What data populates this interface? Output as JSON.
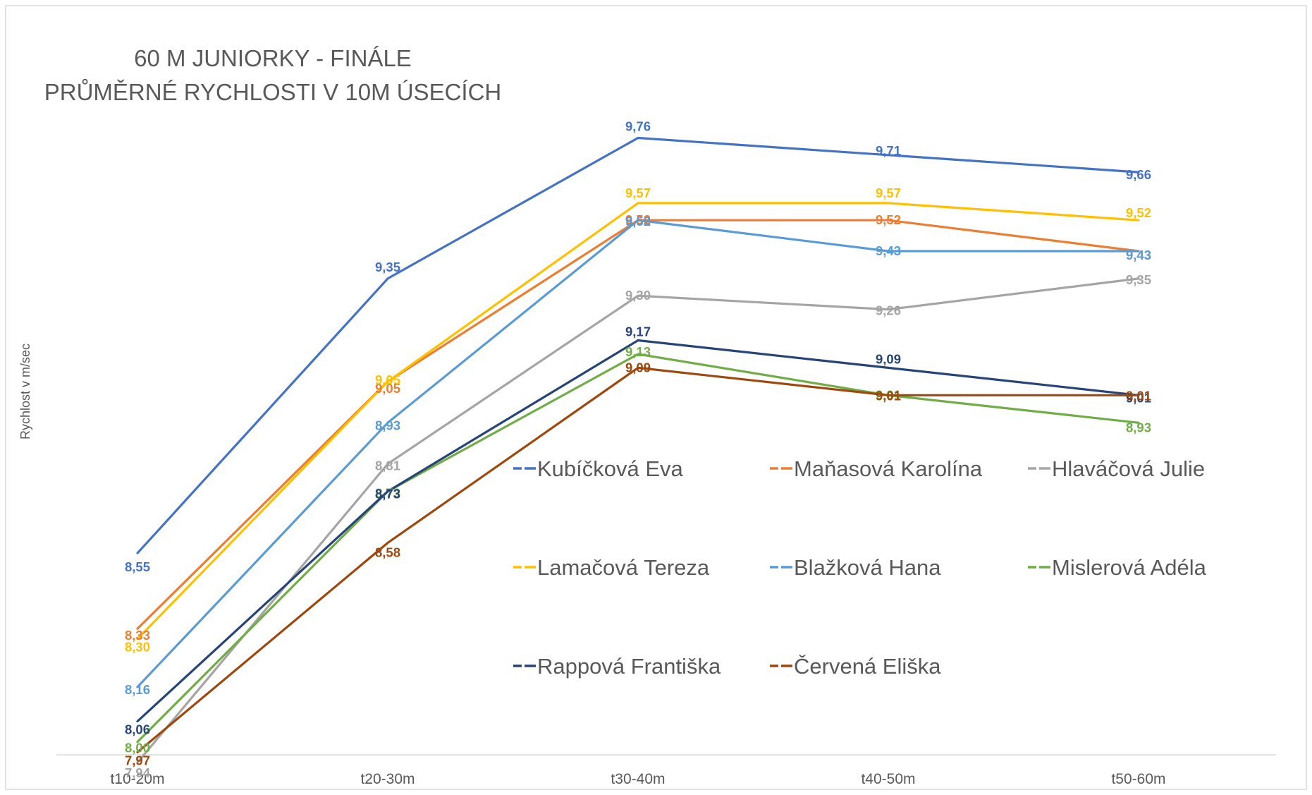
{
  "chart_data": {
    "type": "line",
    "title_lines": [
      "60 M JUNIORKY - FINÁLE",
      "PRŮMĚRNÉ RYCHLOSTI V 10M ÚSECÍCH"
    ],
    "xlabel": "",
    "ylabel": "Rychlost v m/sec",
    "categories": [
      "t10-20m",
      "t20-30m",
      "t30-40m",
      "t40-50m",
      "t50-60m"
    ],
    "ylim": [
      7.8,
      9.9
    ],
    "grid": false,
    "legend_position": "bottom-right (inside plot)",
    "series": [
      {
        "name": "Kubíčková Eva",
        "color": "#4472C4",
        "values": [
          8.55,
          9.35,
          9.76,
          9.71,
          9.66
        ],
        "labels": [
          "8,55",
          "9,35",
          "9,76",
          "9,71",
          "9,66"
        ]
      },
      {
        "name": "Maňasová Karolína",
        "color": "#ED7D31",
        "values": [
          8.33,
          9.05,
          9.52,
          9.52,
          9.43
        ],
        "labels": [
          "8,33",
          "9,05",
          "9,52",
          "9,52",
          "9,43"
        ]
      },
      {
        "name": "Hlaváčová Julie",
        "color": "#A5A5A5",
        "values": [
          7.94,
          8.81,
          9.3,
          9.26,
          9.35
        ],
        "labels": [
          "7,94",
          "8,81",
          "9,30",
          "9,26",
          "9,35"
        ]
      },
      {
        "name": "Lamačová Tereza",
        "color": "#FFC000",
        "values": [
          8.3,
          9.05,
          9.57,
          9.57,
          9.52
        ],
        "labels": [
          "8,30",
          "9,05",
          "9,57",
          "9,57",
          "9,52"
        ]
      },
      {
        "name": "Blažková Hana",
        "color": "#5B9BD5",
        "values": [
          8.16,
          8.93,
          9.52,
          9.43,
          9.43
        ],
        "labels": [
          "8,16",
          "8,93",
          "9,52",
          "9,43",
          "9,43"
        ]
      },
      {
        "name": "Mislerová Adéla",
        "color": "#70AD47",
        "values": [
          8.0,
          8.73,
          9.13,
          9.01,
          8.93
        ],
        "labels": [
          "8,00",
          "8,73",
          "9,13",
          "9,01",
          "8,93"
        ]
      },
      {
        "name": "Rappová Františka",
        "color": "#264478",
        "values": [
          8.06,
          8.73,
          9.17,
          9.09,
          9.01
        ],
        "labels": [
          "8,06",
          "8,73",
          "9,17",
          "9,09",
          "9,01"
        ]
      },
      {
        "name": "Červená Eliška",
        "color": "#9E480E",
        "values": [
          7.97,
          8.58,
          9.09,
          9.01,
          9.01
        ],
        "labels": [
          "7,97",
          "8,58",
          "9,09",
          "9,01",
          "9,01"
        ]
      }
    ]
  }
}
